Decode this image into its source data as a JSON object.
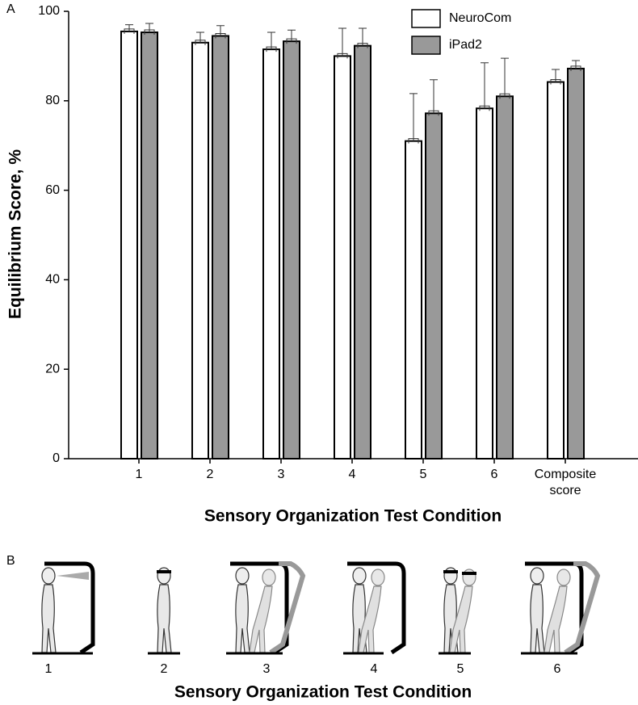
{
  "chart_data": {
    "type": "bar",
    "ylabel": "Equilibrium Score, %",
    "xlabel": "Sensory Organization Test Condition",
    "categories": [
      "1",
      "2",
      "3",
      "4",
      "5",
      "6",
      "Composite score"
    ],
    "series": [
      {
        "name": "NeuroCom",
        "color": "#ffffff",
        "values": [
          95.5,
          93,
          91.5,
          90,
          71,
          78.3,
          84.2
        ],
        "errors": [
          1.5,
          2.3,
          3.8,
          6.2,
          10.6,
          10.2,
          2.8
        ]
      },
      {
        "name": "iPad2",
        "color": "#999999",
        "values": [
          95.3,
          94.5,
          93.3,
          92.3,
          77.2,
          81,
          87.2
        ],
        "errors": [
          2,
          2.3,
          2.5,
          3.9,
          7.5,
          8.5,
          1.8
        ]
      }
    ],
    "ylim": [
      0,
      100
    ],
    "yticks": [
      0,
      20,
      40,
      60,
      80,
      100
    ],
    "legend": "upper right"
  },
  "panel_labels": [
    "A",
    "B"
  ],
  "panel_b": {
    "conditions": [
      "1",
      "2",
      "3",
      "4",
      "5",
      "6"
    ],
    "xlabel": "Sensory Organization Test Condition"
  }
}
